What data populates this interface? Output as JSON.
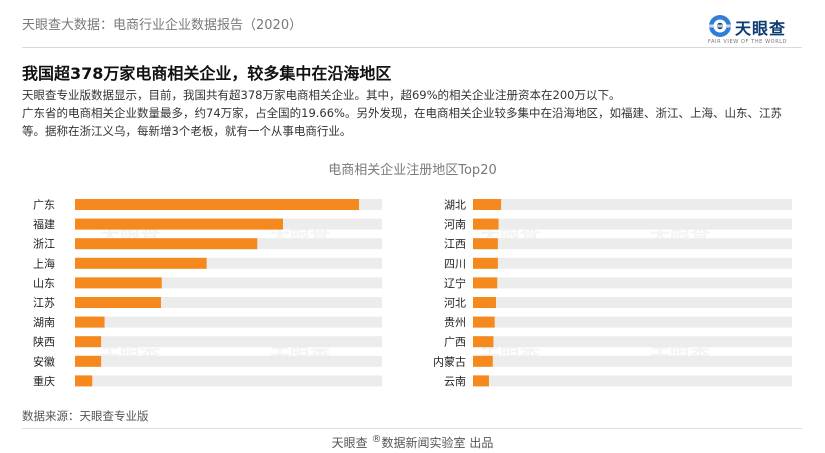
{
  "header": {
    "title": "天眼查大数据：电商行业企业数据报告（2020）"
  },
  "logo": {
    "name": "天眼查",
    "tagline": "FAIR VIEW OF THE WORLD"
  },
  "headline": "我国超378万家电商相关企业，较多集中在沿海地区",
  "paragraphs": [
    "天眼查专业版数据显示，目前，我国共有超378万家电商相关企业。其中，超69%的相关企业注册资本在200万以下。",
    "广东省的电商相关企业数量最多，约74万家，占全国的19.66%。另外发现，在电商相关企业较多集中在沿海地区，如福建、浙江、上海、山东、江苏等。据称在浙江义乌，每新增3个老板，就有一个从事电商行业。"
  ],
  "chart_data": {
    "type": "bar",
    "orientation": "horizontal",
    "title": "电商相关企业注册地区Top20",
    "panels": [
      {
        "categories": [
          "广东",
          "福建",
          "浙江",
          "上海",
          "山东",
          "江苏",
          "湖南",
          "陕西",
          "安徽",
          "重庆"
        ],
        "values": [
          74,
          54.2,
          47.5,
          34.3,
          22.6,
          22.4,
          7.7,
          6.8,
          6.8,
          4.5
        ],
        "xlim": [
          0,
          80
        ]
      },
      {
        "categories": [
          "湖北",
          "河南",
          "江西",
          "四川",
          "辽宁",
          "河北",
          "贵州",
          "广西",
          "内蒙古",
          "云南"
        ],
        "values": [
          4.4,
          4.0,
          3.9,
          3.9,
          3.8,
          3.6,
          3.4,
          3.2,
          3.1,
          2.5
        ],
        "xlim": [
          0,
          50
        ]
      }
    ],
    "colors": {
      "bar": "#f5891e",
      "track": "#ececec"
    },
    "grid": false
  },
  "source": "数据来源：天眼查专业版",
  "watermark": "天眼查",
  "footer": {
    "brand": "天眼查",
    "mark": "®",
    "rest": "数据新闻实验室 出品"
  }
}
